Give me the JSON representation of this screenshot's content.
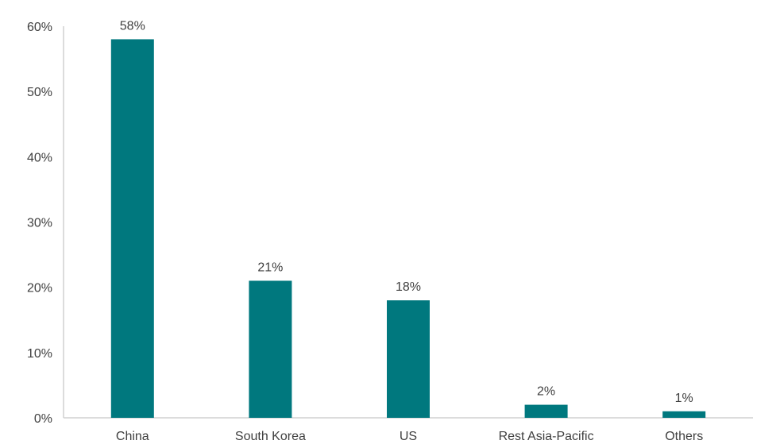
{
  "chart_data": {
    "type": "bar",
    "title": "",
    "xlabel": "",
    "ylabel": "",
    "categories": [
      "China",
      "South Korea",
      "US",
      "Rest Asia-Pacific",
      "Others"
    ],
    "values": [
      58,
      21,
      18,
      2,
      1
    ],
    "data_labels": [
      "58%",
      "21%",
      "18%",
      "2%",
      "1%"
    ],
    "ylim": [
      0,
      60
    ],
    "yticks": [
      0,
      10,
      20,
      30,
      40,
      50,
      60
    ],
    "ytick_labels": [
      "0%",
      "10%",
      "20%",
      "30%",
      "40%",
      "50%",
      "60%"
    ],
    "grid": false,
    "legend": "none",
    "bar_color": "#00787E",
    "axis_color": "#D0D0D0"
  }
}
